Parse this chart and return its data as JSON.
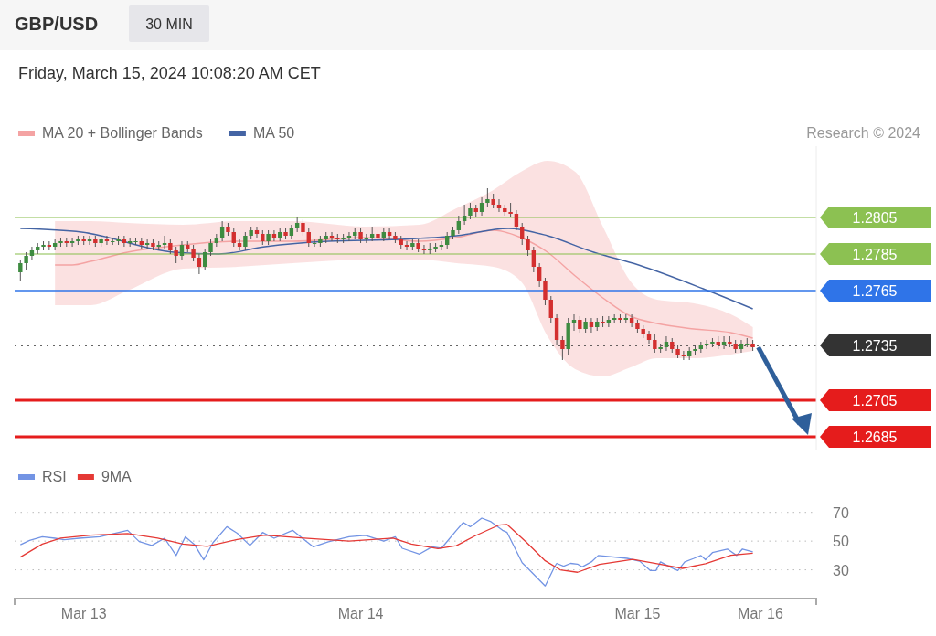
{
  "chart_data": [
    {
      "type": "candlestick",
      "title": "GBP/USD",
      "subtitle": "30 MIN",
      "annotations": [
        "Friday, March 15, 2024 10:08:20 AM CET",
        "Research © 2024"
      ],
      "legend": "top left",
      "tick_labels": "y",
      "xlim": [
        "2024-03-12T18:00",
        "2024-03-15T15:30"
      ],
      "ylim": [
        1.2678,
        1.2844
      ],
      "yticks": [
        1.2805,
        1.2785,
        1.2765,
        1.2735,
        1.2705,
        1.2685
      ],
      "x": [
        "2024-03-12T18:30",
        "2024-03-12T19:00",
        "2024-03-12T19:30",
        "2024-03-12T20:00",
        "2024-03-12T20:30",
        "2024-03-12T21:00",
        "2024-03-12T21:30",
        "2024-03-12T22:00",
        "2024-03-12T22:30",
        "2024-03-12T23:00",
        "2024-03-12T23:30",
        "2024-03-13T00:00",
        "2024-03-13T00:30",
        "2024-03-13T01:00",
        "2024-03-13T01:30",
        "2024-03-13T02:00",
        "2024-03-13T02:30",
        "2024-03-13T03:00",
        "2024-03-13T03:30",
        "2024-03-13T04:00",
        "2024-03-13T04:30",
        "2024-03-13T05:00",
        "2024-03-13T05:30",
        "2024-03-13T06:00",
        "2024-03-13T06:30",
        "2024-03-13T07:00",
        "2024-03-13T07:30",
        "2024-03-13T08:00",
        "2024-03-13T08:30",
        "2024-03-13T09:00",
        "2024-03-13T09:30",
        "2024-03-13T10:00",
        "2024-03-13T10:30",
        "2024-03-13T11:00",
        "2024-03-13T11:30",
        "2024-03-13T12:00",
        "2024-03-13T12:30",
        "2024-03-13T13:00",
        "2024-03-13T13:30",
        "2024-03-13T14:00",
        "2024-03-13T14:30",
        "2024-03-13T15:00",
        "2024-03-13T15:30",
        "2024-03-13T16:00",
        "2024-03-13T16:30",
        "2024-03-13T17:00",
        "2024-03-13T17:30",
        "2024-03-13T18:00",
        "2024-03-13T18:30",
        "2024-03-13T19:00",
        "2024-03-13T19:30",
        "2024-03-13T20:00",
        "2024-03-13T20:30",
        "2024-03-13T21:00",
        "2024-03-13T21:30",
        "2024-03-13T22:00",
        "2024-03-13T22:30",
        "2024-03-13T23:00",
        "2024-03-13T23:30",
        "2024-03-14T00:00",
        "2024-03-14T00:30",
        "2024-03-14T01:00",
        "2024-03-14T01:30",
        "2024-03-14T02:00",
        "2024-03-14T02:30",
        "2024-03-14T03:00",
        "2024-03-14T03:30",
        "2024-03-14T04:00",
        "2024-03-14T04:30",
        "2024-03-14T05:00",
        "2024-03-14T05:30",
        "2024-03-14T06:00",
        "2024-03-14T06:30",
        "2024-03-14T07:00",
        "2024-03-14T07:30",
        "2024-03-14T08:00",
        "2024-03-14T08:30",
        "2024-03-14T09:00",
        "2024-03-14T09:30",
        "2024-03-14T10:00",
        "2024-03-14T10:30",
        "2024-03-14T11:00",
        "2024-03-14T11:30",
        "2024-03-14T12:00",
        "2024-03-14T12:30",
        "2024-03-14T13:00",
        "2024-03-14T13:30",
        "2024-03-14T14:00",
        "2024-03-14T14:30",
        "2024-03-14T15:00",
        "2024-03-14T15:30",
        "2024-03-14T16:00",
        "2024-03-14T16:30",
        "2024-03-14T17:00",
        "2024-03-14T17:30",
        "2024-03-14T18:00",
        "2024-03-14T18:30",
        "2024-03-14T19:00",
        "2024-03-14T19:30",
        "2024-03-14T20:00",
        "2024-03-14T20:30",
        "2024-03-14T21:00",
        "2024-03-14T21:30",
        "2024-03-14T22:00",
        "2024-03-14T22:30",
        "2024-03-14T23:00",
        "2024-03-14T23:30",
        "2024-03-15T00:00",
        "2024-03-15T00:30",
        "2024-03-15T01:00",
        "2024-03-15T01:30",
        "2024-03-15T02:00",
        "2024-03-15T02:30",
        "2024-03-15T03:00",
        "2024-03-15T03:30",
        "2024-03-15T04:00",
        "2024-03-15T04:30",
        "2024-03-15T05:00",
        "2024-03-15T05:30",
        "2024-03-15T06:00",
        "2024-03-15T06:30",
        "2024-03-15T07:00",
        "2024-03-15T07:30",
        "2024-03-15T08:00",
        "2024-03-15T08:30",
        "2024-03-15T09:00",
        "2024-03-15T09:30",
        "2024-03-15T10:00"
      ],
      "ohlc": [
        [
          1.2775,
          1.2782,
          1.277,
          1.278
        ],
        [
          1.278,
          1.2786,
          1.2776,
          1.2784
        ],
        [
          1.2784,
          1.2789,
          1.2782,
          1.2787
        ],
        [
          1.2787,
          1.2791,
          1.2785,
          1.2789
        ],
        [
          1.2789,
          1.2792,
          1.2787,
          1.279
        ],
        [
          1.279,
          1.2792,
          1.2787,
          1.2789
        ],
        [
          1.2789,
          1.2793,
          1.2787,
          1.2791
        ],
        [
          1.2791,
          1.2794,
          1.2789,
          1.2792
        ],
        [
          1.2792,
          1.2794,
          1.2789,
          1.2791
        ],
        [
          1.2791,
          1.2794,
          1.2789,
          1.2792
        ],
        [
          1.2792,
          1.2795,
          1.279,
          1.2793
        ],
        [
          1.2793,
          1.2795,
          1.279,
          1.2792
        ],
        [
          1.2792,
          1.2795,
          1.279,
          1.2793
        ],
        [
          1.2793,
          1.2795,
          1.2789,
          1.2791
        ],
        [
          1.2791,
          1.2795,
          1.2789,
          1.2793
        ],
        [
          1.2793,
          1.2795,
          1.279,
          1.2792
        ],
        [
          1.2792,
          1.2794,
          1.279,
          1.2792
        ],
        [
          1.2792,
          1.2795,
          1.279,
          1.2793
        ],
        [
          1.2793,
          1.2795,
          1.2789,
          1.2791
        ],
        [
          1.2791,
          1.2794,
          1.2789,
          1.2792
        ],
        [
          1.2792,
          1.2794,
          1.279,
          1.2792
        ],
        [
          1.2792,
          1.2794,
          1.2788,
          1.279
        ],
        [
          1.279,
          1.2793,
          1.2788,
          1.2791
        ],
        [
          1.2791,
          1.2793,
          1.2787,
          1.2789
        ],
        [
          1.2789,
          1.2792,
          1.2787,
          1.279
        ],
        [
          1.279,
          1.2795,
          1.2788,
          1.2791
        ],
        [
          1.2791,
          1.2793,
          1.2785,
          1.2787
        ],
        [
          1.2787,
          1.2789,
          1.278,
          1.2784
        ],
        [
          1.2784,
          1.2792,
          1.2782,
          1.279
        ],
        [
          1.279,
          1.2792,
          1.2786,
          1.2788
        ],
        [
          1.2788,
          1.279,
          1.2781,
          1.2783
        ],
        [
          1.2783,
          1.2785,
          1.2774,
          1.2778
        ],
        [
          1.2778,
          1.2788,
          1.2776,
          1.2786
        ],
        [
          1.2786,
          1.2793,
          1.2784,
          1.2791
        ],
        [
          1.2791,
          1.2796,
          1.2789,
          1.2794
        ],
        [
          1.2794,
          1.2803,
          1.2792,
          1.28
        ],
        [
          1.28,
          1.2802,
          1.2795,
          1.2797
        ],
        [
          1.2797,
          1.2799,
          1.2789,
          1.2791
        ],
        [
          1.2791,
          1.2793,
          1.2787,
          1.2789
        ],
        [
          1.2789,
          1.2797,
          1.2787,
          1.2795
        ],
        [
          1.2795,
          1.28,
          1.2793,
          1.2798
        ],
        [
          1.2798,
          1.28,
          1.2794,
          1.2796
        ],
        [
          1.2796,
          1.2798,
          1.279,
          1.2792
        ],
        [
          1.2792,
          1.2798,
          1.279,
          1.2796
        ],
        [
          1.2796,
          1.2798,
          1.2792,
          1.2794
        ],
        [
          1.2794,
          1.2799,
          1.2792,
          1.2797
        ],
        [
          1.2797,
          1.2799,
          1.2793,
          1.2795
        ],
        [
          1.2795,
          1.2801,
          1.2793,
          1.2799
        ],
        [
          1.2799,
          1.2805,
          1.2797,
          1.2802
        ],
        [
          1.2802,
          1.2804,
          1.2795,
          1.2797
        ],
        [
          1.2797,
          1.2799,
          1.2789,
          1.2791
        ],
        [
          1.2791,
          1.2793,
          1.2789,
          1.2791
        ],
        [
          1.2791,
          1.2795,
          1.2789,
          1.2793
        ],
        [
          1.2793,
          1.2797,
          1.2791,
          1.2795
        ],
        [
          1.2795,
          1.2797,
          1.2792,
          1.2794
        ],
        [
          1.2794,
          1.2796,
          1.2791,
          1.2793
        ],
        [
          1.2793,
          1.2796,
          1.2791,
          1.2794
        ],
        [
          1.2794,
          1.2797,
          1.2792,
          1.2795
        ],
        [
          1.2795,
          1.2799,
          1.2793,
          1.2797
        ],
        [
          1.2797,
          1.2799,
          1.2791,
          1.2793
        ],
        [
          1.2793,
          1.2796,
          1.2791,
          1.2794
        ],
        [
          1.2794,
          1.28,
          1.2792,
          1.2796
        ],
        [
          1.2796,
          1.2798,
          1.2792,
          1.2794
        ],
        [
          1.2794,
          1.2799,
          1.2792,
          1.2797
        ],
        [
          1.2797,
          1.2799,
          1.2793,
          1.2795
        ],
        [
          1.2795,
          1.2797,
          1.2791,
          1.2793
        ],
        [
          1.2793,
          1.2795,
          1.2788,
          1.279
        ],
        [
          1.279,
          1.2792,
          1.2787,
          1.2789
        ],
        [
          1.2789,
          1.2793,
          1.2787,
          1.2791
        ],
        [
          1.2791,
          1.2793,
          1.2786,
          1.2788
        ],
        [
          1.2788,
          1.279,
          1.2785,
          1.2787
        ],
        [
          1.2787,
          1.2791,
          1.2785,
          1.2788
        ],
        [
          1.2788,
          1.2791,
          1.2786,
          1.2789
        ],
        [
          1.2789,
          1.2792,
          1.2787,
          1.279
        ],
        [
          1.279,
          1.2797,
          1.2788,
          1.2795
        ],
        [
          1.2795,
          1.28,
          1.2793,
          1.2798
        ],
        [
          1.2798,
          1.2806,
          1.2796,
          1.2803
        ],
        [
          1.2803,
          1.2812,
          1.2801,
          1.2806
        ],
        [
          1.2806,
          1.2813,
          1.2804,
          1.281
        ],
        [
          1.281,
          1.2812,
          1.2805,
          1.2808
        ],
        [
          1.2808,
          1.2816,
          1.2806,
          1.2813
        ],
        [
          1.2813,
          1.2821,
          1.2811,
          1.2815
        ],
        [
          1.2815,
          1.2818,
          1.281,
          1.2812
        ],
        [
          1.2812,
          1.2815,
          1.2808,
          1.281
        ],
        [
          1.281,
          1.2812,
          1.2806,
          1.2808
        ],
        [
          1.2808,
          1.2813,
          1.2805,
          1.2807
        ],
        [
          1.2807,
          1.2809,
          1.2798,
          1.28
        ],
        [
          1.28,
          1.2802,
          1.279,
          1.2793
        ],
        [
          1.2793,
          1.2795,
          1.2784,
          1.2787
        ],
        [
          1.2787,
          1.2789,
          1.2775,
          1.2778
        ],
        [
          1.2778,
          1.278,
          1.2767,
          1.277
        ],
        [
          1.277,
          1.2772,
          1.2757,
          1.276
        ],
        [
          1.276,
          1.2762,
          1.2747,
          1.275
        ],
        [
          1.275,
          1.2752,
          1.2735,
          1.2738
        ],
        [
          1.2738,
          1.274,
          1.2727,
          1.2733
        ],
        [
          1.2733,
          1.275,
          1.273,
          1.2747
        ],
        [
          1.2747,
          1.2752,
          1.2743,
          1.2749
        ],
        [
          1.2749,
          1.2751,
          1.2742,
          1.2744
        ],
        [
          1.2744,
          1.275,
          1.2742,
          1.2748
        ],
        [
          1.2748,
          1.275,
          1.2742,
          1.2745
        ],
        [
          1.2745,
          1.275,
          1.2743,
          1.2748
        ],
        [
          1.2748,
          1.2751,
          1.2745,
          1.2747
        ],
        [
          1.2747,
          1.2751,
          1.2745,
          1.2749
        ],
        [
          1.2749,
          1.2752,
          1.2747,
          1.275
        ],
        [
          1.275,
          1.2752,
          1.2747,
          1.2749
        ],
        [
          1.2749,
          1.2752,
          1.2747,
          1.275
        ],
        [
          1.275,
          1.2752,
          1.2745,
          1.2747
        ],
        [
          1.2747,
          1.2749,
          1.2742,
          1.2744
        ],
        [
          1.2744,
          1.2746,
          1.2739,
          1.2741
        ],
        [
          1.2741,
          1.2743,
          1.2736,
          1.2738
        ],
        [
          1.2738,
          1.2741,
          1.2731,
          1.2733
        ],
        [
          1.2733,
          1.2736,
          1.2731,
          1.2734
        ],
        [
          1.2734,
          1.274,
          1.2732,
          1.2737
        ],
        [
          1.2737,
          1.2739,
          1.2731,
          1.2733
        ],
        [
          1.2733,
          1.2735,
          1.2728,
          1.273
        ],
        [
          1.273,
          1.2732,
          1.2727,
          1.2729
        ],
        [
          1.2729,
          1.2734,
          1.2727,
          1.2732
        ],
        [
          1.2732,
          1.2735,
          1.273,
          1.2733
        ],
        [
          1.2733,
          1.2737,
          1.2731,
          1.2735
        ],
        [
          1.2735,
          1.2738,
          1.2733,
          1.2736
        ],
        [
          1.2736,
          1.2739,
          1.2734,
          1.2737
        ],
        [
          1.2737,
          1.274,
          1.2733,
          1.2735
        ],
        [
          1.2735,
          1.274,
          1.2733,
          1.2737
        ],
        [
          1.2737,
          1.274,
          1.2734,
          1.2736
        ],
        [
          1.2736,
          1.2738,
          1.2731,
          1.2733
        ],
        [
          1.2733,
          1.2738,
          1.2731,
          1.2736
        ],
        [
          1.2736,
          1.2739,
          1.2734,
          1.2736
        ],
        [
          1.2736,
          1.2738,
          1.2732,
          1.2734
        ]
      ],
      "series": [
        {
          "type": "line",
          "name": "MA 20 + Bollinger Bands",
          "color": "#f4a3a3",
          "x": [
            "2024-03-12T21:30",
            "2024-03-12T23:00",
            "2024-03-13T00:36",
            "2024-03-13T03:48",
            "2024-03-13T08:36",
            "2024-03-13T13:18",
            "2024-03-13T18:06",
            "2024-03-14T00:24",
            "2024-03-14T05:06",
            "2024-03-14T08:18",
            "2024-03-14T11:30",
            "2024-03-14T13:54",
            "2024-03-14T16:12",
            "2024-03-14T18:36",
            "2024-03-14T21:00",
            "2024-03-14T23:24",
            "2024-03-15T01:42",
            "2024-03-15T04:54",
            "2024-03-15T08:06",
            "2024-03-15T10:00"
          ],
          "values": [
            1.2779,
            1.2779,
            1.2781,
            1.2786,
            1.279,
            1.2792,
            1.2792,
            1.2794,
            1.2792,
            1.2794,
            1.2798,
            1.2794,
            1.2786,
            1.2773,
            1.2761,
            1.2751,
            1.2747,
            1.2744,
            1.2742,
            1.2739
          ],
          "upper": [
            1.2803,
            1.2803,
            1.2803,
            1.2802,
            1.2801,
            1.2803,
            1.2803,
            1.28,
            1.2801,
            1.281,
            1.282,
            1.283,
            1.2836,
            1.283,
            1.28,
            1.277,
            1.276,
            1.2758,
            1.2752,
            1.2745
          ],
          "lower": [
            1.2757,
            1.2757,
            1.2757,
            1.2765,
            1.2777,
            1.2778,
            1.278,
            1.2782,
            1.2782,
            1.278,
            1.2778,
            1.277,
            1.274,
            1.2722,
            1.2718,
            1.2723,
            1.2728,
            1.2728,
            1.273,
            1.2732
          ]
        },
        {
          "type": "line",
          "name": "MA 50",
          "color": "#4464a4",
          "x": [
            "2024-03-12T18:30",
            "2024-03-12T23:48",
            "2024-03-13T07:48",
            "2024-03-13T11:42",
            "2024-03-13T15:42",
            "2024-03-13T21:12",
            "2024-03-14T03:18",
            "2024-03-14T08:18",
            "2024-03-14T12:48",
            "2024-03-14T16:12",
            "2024-03-14T20:12",
            "2024-03-15T00:06",
            "2024-03-15T05:42",
            "2024-03-15T10:00"
          ],
          "values": [
            1.2799,
            1.2797,
            1.2786,
            1.2785,
            1.2789,
            1.2792,
            1.2793,
            1.2795,
            1.2799,
            1.2795,
            1.2786,
            1.2779,
            1.2766,
            1.2755
          ]
        }
      ],
      "ref_lines": [
        {
          "axis": "y",
          "value": 1.2805,
          "color": "#8cc152",
          "line_style": "solid"
        },
        {
          "axis": "y",
          "value": 1.2785,
          "color": "#8cc152",
          "line_style": "solid"
        },
        {
          "axis": "y",
          "value": 1.2765,
          "color": "#2f74e8",
          "line_style": "solid"
        },
        {
          "axis": "y",
          "value": 1.2735,
          "color": "#333333",
          "line_style": "dotted"
        },
        {
          "axis": "y",
          "value": 1.2705,
          "color": "#e51c1c",
          "line_style": "solid"
        },
        {
          "axis": "y",
          "value": 1.2685,
          "color": "#e51c1c",
          "line_style": "solid"
        }
      ]
    },
    {
      "type": "line",
      "legend": "top left",
      "grid": "y",
      "xlim": [
        "2024-03-12T18:00",
        "2024-03-15T15:30"
      ],
      "ylim": [
        10,
        70
      ],
      "yticks": [
        30,
        50,
        70
      ],
      "xticks": [
        {
          "value": "2024-03-13",
          "label": "Mar 13"
        },
        {
          "value": "2024-03-14",
          "label": "Mar 14"
        },
        {
          "value": "2024-03-15",
          "label": "Mar 15"
        }
      ],
      "annotations": [
        "Mar 16"
      ],
      "series": [
        {
          "name": "RSI",
          "color": "#7394e4",
          "x": [
            "2024-03-12T18:30",
            "2024-03-12T19:18",
            "2024-03-12T20:24",
            "2024-03-12T21:30",
            "2024-03-12T22:18",
            "2024-03-12T23:36",
            "2024-03-13T01:24",
            "2024-03-13T03:48",
            "2024-03-13T04:48",
            "2024-03-13T05:54",
            "2024-03-13T07:00",
            "2024-03-13T08:00",
            "2024-03-13T08:48",
            "2024-03-13T09:36",
            "2024-03-13T10:24",
            "2024-03-13T11:12",
            "2024-03-13T12:24",
            "2024-03-13T13:18",
            "2024-03-13T14:24",
            "2024-03-13T15:30",
            "2024-03-13T16:30",
            "2024-03-13T18:06",
            "2024-03-13T18:48",
            "2024-03-13T19:54",
            "2024-03-13T21:12",
            "2024-03-13T23:00",
            "2024-03-14T00:24",
            "2024-03-14T02:00",
            "2024-03-14T03:00",
            "2024-03-14T03:36",
            "2024-03-14T05:06",
            "2024-03-14T06:12",
            "2024-03-14T07:00",
            "2024-03-14T08:18",
            "2024-03-14T08:54",
            "2024-03-14T09:30",
            "2024-03-14T10:30",
            "2024-03-14T11:18",
            "2024-03-14T12:18",
            "2024-03-14T12:42",
            "2024-03-14T14:00",
            "2024-03-14T14:30",
            "2024-03-14T16:00",
            "2024-03-14T16:48",
            "2024-03-14T17:00",
            "2024-03-14T17:36",
            "2024-03-14T18:12",
            "2024-03-14T18:48",
            "2024-03-14T19:12",
            "2024-03-14T20:00",
            "2024-03-14T20:36",
            "2024-03-14T23:06",
            "2024-03-15T00:12",
            "2024-03-15T01:06",
            "2024-03-15T01:36",
            "2024-03-15T02:00",
            "2024-03-15T02:48",
            "2024-03-15T03:30",
            "2024-03-15T04:06",
            "2024-03-15T04:54",
            "2024-03-15T05:30",
            "2024-03-15T05:54",
            "2024-03-15T06:30",
            "2024-03-15T07:48",
            "2024-03-15T08:36",
            "2024-03-15T09:06",
            "2024-03-15T10:00"
          ],
          "values": [
            47.5,
            50.5,
            53,
            52,
            51,
            52,
            53,
            57.5,
            49.7,
            47,
            52,
            40,
            53,
            47.5,
            37,
            49,
            60,
            55.5,
            47,
            56,
            52,
            57.5,
            53,
            46,
            49.5,
            53,
            54,
            50,
            53,
            45,
            41,
            46,
            45,
            57.5,
            63,
            60,
            66,
            63.5,
            57.5,
            56,
            35,
            31,
            18.8,
            32,
            34.5,
            32.5,
            34.5,
            34,
            32,
            35.5,
            40,
            38,
            36,
            29.5,
            29.5,
            35.5,
            32,
            29.5,
            35.5,
            38,
            40,
            37,
            42,
            44.5,
            40,
            44.5,
            42.5
          ]
        },
        {
          "name": "9MA",
          "color": "#e53935",
          "x": [
            "2024-03-12T18:30",
            "2024-03-12T20:24",
            "2024-03-12T22:00",
            "2024-03-13T00:36",
            "2024-03-13T03:48",
            "2024-03-13T06:24",
            "2024-03-13T08:36",
            "2024-03-13T10:42",
            "2024-03-13T13:18",
            "2024-03-13T15:42",
            "2024-03-13T19:06",
            "2024-03-13T23:00",
            "2024-03-14T02:48",
            "2024-03-14T04:24",
            "2024-03-14T06:42",
            "2024-03-14T08:18",
            "2024-03-14T09:54",
            "2024-03-14T12:00",
            "2024-03-14T12:42",
            "2024-03-14T14:24",
            "2024-03-14T16:00",
            "2024-03-14T17:18",
            "2024-03-14T18:48",
            "2024-03-14T20:42",
            "2024-03-14T23:36",
            "2024-03-15T01:42",
            "2024-03-15T03:54",
            "2024-03-15T05:54",
            "2024-03-15T08:06",
            "2024-03-15T10:00"
          ],
          "values": [
            38.9,
            47.9,
            52.1,
            54.2,
            55.3,
            52.1,
            47.9,
            46.4,
            51.1,
            54.2,
            52.1,
            50,
            52.1,
            47.9,
            44.7,
            46.8,
            53.6,
            61.2,
            61.6,
            49,
            36.3,
            30,
            28.3,
            33.8,
            37.3,
            34.2,
            31,
            34.2,
            40.1,
            41.6
          ]
        }
      ]
    }
  ]
}
